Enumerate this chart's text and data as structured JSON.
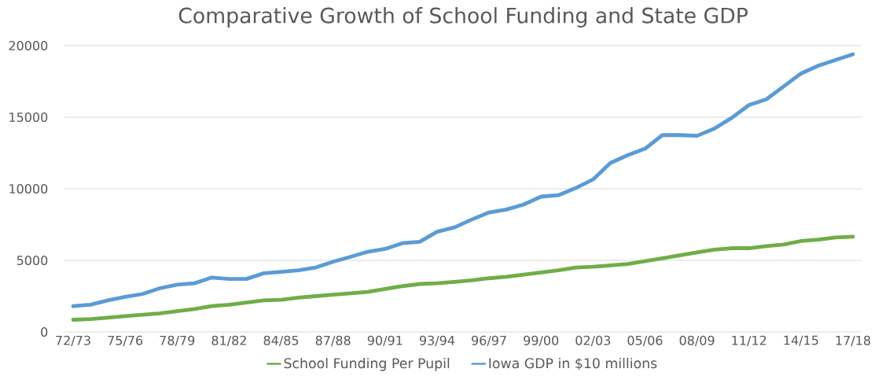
{
  "chart_data": {
    "type": "line",
    "title": "Comparative Growth of School Funding and State GDP",
    "categories": [
      "72/73",
      null,
      null,
      "75/76",
      null,
      null,
      "78/79",
      null,
      null,
      "81/82",
      null,
      null,
      "84/85",
      null,
      null,
      "87/88",
      null,
      null,
      "90/91",
      null,
      null,
      "93/94",
      null,
      null,
      "96/97",
      null,
      null,
      "99/00",
      null,
      null,
      "02/03",
      null,
      null,
      "05/06",
      null,
      null,
      "08/09",
      null,
      null,
      "11/12",
      null,
      null,
      "14/15",
      null,
      null,
      "17/18"
    ],
    "series": [
      {
        "name": "School Funding Per Pupil",
        "color": "#70ad47",
        "values": [
          850,
          900,
          1000,
          1100,
          1200,
          1300,
          1450,
          1600,
          1800,
          1900,
          2050,
          2200,
          2250,
          2400,
          2500,
          2600,
          2700,
          2800,
          3000,
          3200,
          3350,
          3400,
          3500,
          3600,
          3750,
          3850,
          4000,
          4150,
          4300,
          4500,
          4550,
          4650,
          4750,
          4950,
          5150,
          5350,
          5550,
          5750,
          5850,
          5850,
          6000,
          6100,
          6350,
          6450,
          6600,
          6650
        ]
      },
      {
        "name": "Iowa GDP in $10 millions",
        "color": "#5b9bd5",
        "values": [
          1800,
          1900,
          2200,
          2450,
          2650,
          3050,
          3300,
          3400,
          3800,
          3700,
          3700,
          4100,
          4200,
          4300,
          4500,
          4900,
          5250,
          5600,
          5800,
          6200,
          6300,
          7000,
          7300,
          7850,
          8350,
          8550,
          8900,
          9450,
          9550,
          10050,
          10650,
          11800,
          12350,
          12800,
          13750,
          13750,
          13700,
          14200,
          14950,
          15850,
          16250,
          17150,
          18050,
          18600,
          19000,
          19400
        ]
      }
    ],
    "ylim": [
      0,
      20000
    ],
    "yticks": [
      0,
      5000,
      10000,
      15000,
      20000
    ],
    "grid": "y",
    "legend": "bottom",
    "marker": "none",
    "line_style": "solid"
  }
}
